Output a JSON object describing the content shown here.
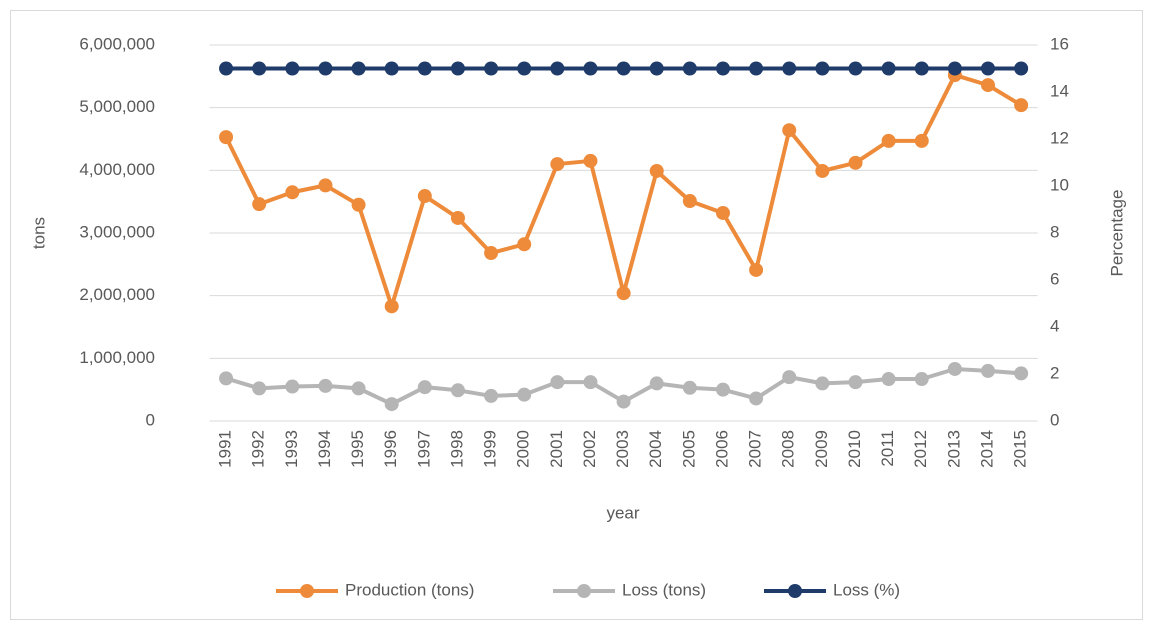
{
  "chart_data": {
    "type": "line",
    "categories": [
      "1991",
      "1992",
      "1993",
      "1994",
      "1995",
      "1996",
      "1997",
      "1998",
      "1999",
      "2000",
      "2001",
      "2002",
      "2003",
      "2004",
      "2005",
      "2006",
      "2007",
      "2008",
      "2009",
      "2010",
      "2011",
      "2012",
      "2013",
      "2014",
      "2015"
    ],
    "series": [
      {
        "name": "Production (tons)",
        "color": "#ed8b3b",
        "values": [
          4530000,
          3460000,
          3650000,
          3760000,
          3450000,
          1830000,
          3590000,
          3240000,
          2680000,
          2820000,
          4100000,
          4150000,
          2040000,
          3990000,
          3510000,
          3320000,
          2410000,
          4640000,
          3990000,
          4120000,
          4470000,
          4470000,
          5520000,
          5360000,
          5040000
        ]
      },
      {
        "name": "Loss  (tons)",
        "color": "#b5b5b5",
        "values": [
          680000,
          520000,
          550000,
          560000,
          520000,
          270000,
          540000,
          490000,
          400000,
          420000,
          620000,
          620000,
          310000,
          600000,
          530000,
          500000,
          360000,
          700000,
          600000,
          620000,
          670000,
          670000,
          830000,
          800000,
          760000
        ]
      },
      {
        "name": "Loss (%)",
        "color": "#1f3b6a",
        "axis": "y2",
        "values": [
          15,
          15,
          15,
          15,
          15,
          15,
          15,
          15,
          15,
          15,
          15,
          15,
          15,
          15,
          15,
          15,
          15,
          15,
          15,
          15,
          15,
          15,
          15,
          15,
          15
        ]
      }
    ],
    "xlabel": "year",
    "ylabel": "tons",
    "y2label": "Percentage",
    "ylim": [
      0,
      6000000
    ],
    "yticks": [
      0,
      {
        "value": 1000000,
        "label": "1,000,000"
      },
      {
        "value": 2000000,
        "label": "2,000,000"
      },
      {
        "value": 3000000,
        "label": "3,000,000"
      },
      {
        "value": 4000000,
        "label": "4,000,000"
      },
      {
        "value": 5000000,
        "label": "5,000,000"
      },
      {
        "value": 6000000,
        "label": "6,000,000"
      }
    ],
    "y2lim": [
      0,
      16
    ],
    "y2ticks": [
      0,
      2,
      4,
      6,
      8,
      10,
      12,
      14,
      16
    ],
    "grid": true,
    "legend": "bottom"
  }
}
